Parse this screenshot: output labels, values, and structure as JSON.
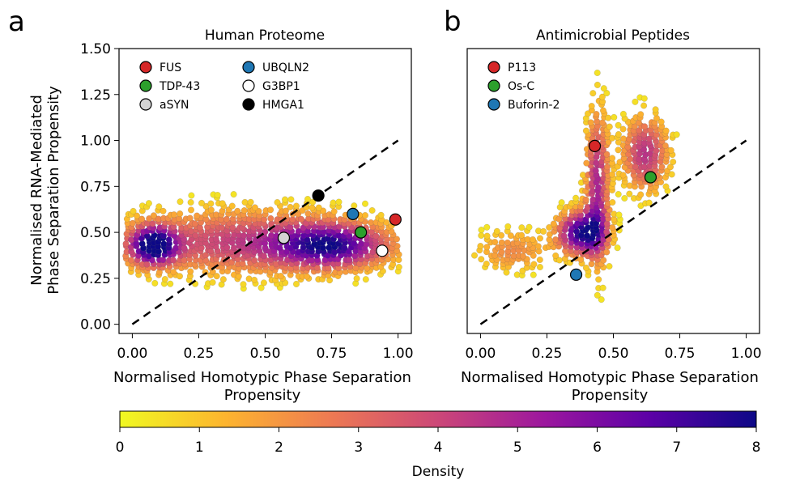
{
  "chart_data": [
    {
      "panel_label": "a",
      "type": "scatter",
      "title": "Human Proteome",
      "xlabel": [
        "Normalised Homotypic Phase Separation",
        "Propensity"
      ],
      "ylabel": [
        "Normalised RNA-Mediated",
        "Phase Separation Propensity"
      ],
      "xlim": [
        -0.05,
        1.05
      ],
      "ylim": [
        -0.05,
        1.5
      ],
      "xticks": [
        0.0,
        0.25,
        0.5,
        0.75,
        1.0
      ],
      "xtick_labels": [
        "0.00",
        "0.25",
        "0.50",
        "0.75",
        "1.00"
      ],
      "yticks": [
        0.0,
        0.25,
        0.5,
        0.75,
        1.0,
        1.25,
        1.5
      ],
      "ytick_labels": [
        "0.00",
        "0.25",
        "0.50",
        "0.75",
        "1.00",
        "1.25",
        "1.50"
      ],
      "diagonal": [
        [
          0.0,
          0.0
        ],
        [
          1.0,
          1.0
        ]
      ],
      "density_clusters": [
        {
          "x": 0.08,
          "y": 0.43,
          "sx": 0.06,
          "sy": 0.07,
          "w": 1.0
        },
        {
          "x": 0.75,
          "y": 0.43,
          "sx": 0.14,
          "sy": 0.08,
          "w": 0.75
        },
        {
          "x": 0.42,
          "y": 0.45,
          "sx": 0.32,
          "sy": 0.12,
          "w": 0.55
        }
      ],
      "legend": [
        {
          "label": "FUS",
          "color": "#d62728"
        },
        {
          "label": "TDP-43",
          "color": "#2ca02c"
        },
        {
          "label": "aSYN",
          "color": "#d3d3d3"
        },
        {
          "label": "UBQLN2",
          "color": "#1f77b4"
        },
        {
          "label": "G3BP1",
          "color": "#ffffff"
        },
        {
          "label": "HMGA1",
          "color": "#000000"
        }
      ],
      "highlights": [
        {
          "label": "FUS",
          "x": 0.99,
          "y": 0.57,
          "color": "#d62728"
        },
        {
          "label": "TDP-43",
          "x": 0.86,
          "y": 0.5,
          "color": "#2ca02c"
        },
        {
          "label": "aSYN",
          "x": 0.57,
          "y": 0.47,
          "color": "#d3d3d3"
        },
        {
          "label": "UBQLN2",
          "x": 0.83,
          "y": 0.6,
          "color": "#1f77b4"
        },
        {
          "label": "G3BP1",
          "x": 0.94,
          "y": 0.4,
          "color": "#ffffff"
        },
        {
          "label": "HMGA1",
          "x": 0.7,
          "y": 0.7,
          "color": "#000000"
        }
      ]
    },
    {
      "panel_label": "b",
      "type": "scatter",
      "title": "Antimicrobial Peptides",
      "xlabel": [
        "Normalised Homotypic Phase Separation",
        "Propensity"
      ],
      "xlim": [
        -0.05,
        1.05
      ],
      "ylim": [
        -0.05,
        1.5
      ],
      "xticks": [
        0.0,
        0.25,
        0.5,
        0.75,
        1.0
      ],
      "xtick_labels": [
        "0.00",
        "0.25",
        "0.50",
        "0.75",
        "1.00"
      ],
      "diagonal": [
        [
          0.0,
          0.0
        ],
        [
          1.0,
          1.0
        ]
      ],
      "density_clusters": [
        {
          "x": 0.38,
          "y": 0.5,
          "sx": 0.06,
          "sy": 0.08,
          "w": 1.0
        },
        {
          "x": 0.44,
          "y": 0.75,
          "sx": 0.03,
          "sy": 0.28,
          "w": 0.65
        },
        {
          "x": 0.62,
          "y": 0.93,
          "sx": 0.06,
          "sy": 0.14,
          "w": 0.6
        },
        {
          "x": 0.12,
          "y": 0.4,
          "sx": 0.1,
          "sy": 0.08,
          "w": 0.3
        }
      ],
      "legend": [
        {
          "label": "P113",
          "color": "#d62728"
        },
        {
          "label": "Os-C",
          "color": "#2ca02c"
        },
        {
          "label": "Buforin-2",
          "color": "#1f77b4"
        }
      ],
      "highlights": [
        {
          "label": "P113",
          "x": 0.43,
          "y": 0.97,
          "color": "#d62728"
        },
        {
          "label": "Os-C",
          "x": 0.64,
          "y": 0.8,
          "color": "#2ca02c"
        },
        {
          "label": "Buforin-2",
          "x": 0.36,
          "y": 0.27,
          "color": "#1f77b4"
        }
      ]
    }
  ],
  "colorbar": {
    "label": "Density",
    "min": 0,
    "max": 8,
    "ticks": [
      0,
      1,
      2,
      3,
      4,
      5,
      6,
      7,
      8
    ],
    "tick_labels": [
      "0",
      "1",
      "2",
      "3",
      "4",
      "5",
      "6",
      "7",
      "8"
    ],
    "colormap": [
      "#f0f921",
      "#fdb42f",
      "#ed7953",
      "#cc4778",
      "#9c179e",
      "#5c01a6",
      "#0d0887"
    ]
  }
}
